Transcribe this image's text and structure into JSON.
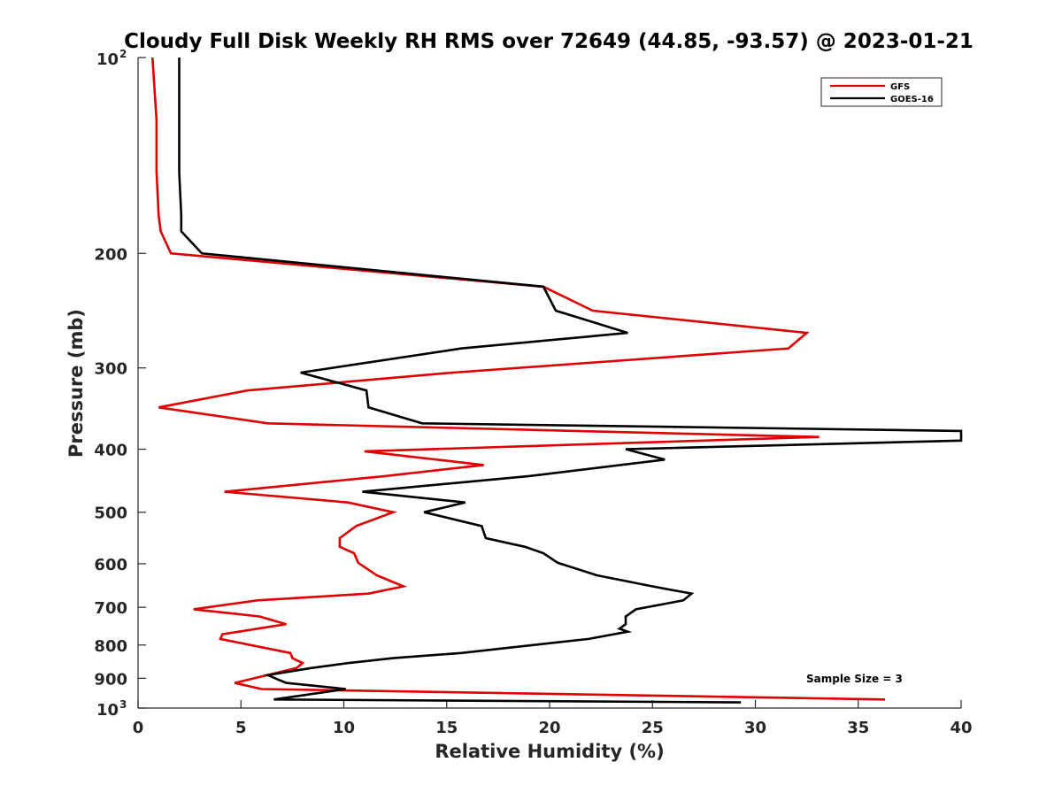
{
  "chart_data": {
    "type": "line",
    "title": "Cloudy Full Disk Weekly RH RMS over 72649 (44.85, -93.57) @ 2023-01-21",
    "xlabel": "Relative Humidity (%)",
    "ylabel": "Pressure (mb)",
    "xlim": [
      0,
      40
    ],
    "ylim": [
      100,
      1000
    ],
    "y_scale": "log",
    "y_reversed": true,
    "grid": false,
    "legend_position": "top-right",
    "x_ticks": [
      {
        "value": 0,
        "label": "0"
      },
      {
        "value": 5,
        "label": "5"
      },
      {
        "value": 10,
        "label": "10"
      },
      {
        "value": 15,
        "label": "15"
      },
      {
        "value": 20,
        "label": "20"
      },
      {
        "value": 25,
        "label": "25"
      },
      {
        "value": 30,
        "label": "30"
      },
      {
        "value": 35,
        "label": "35"
      },
      {
        "value": 40,
        "label": "40"
      }
    ],
    "y_ticks": [
      {
        "value": 100,
        "label": "10",
        "exp": "2"
      },
      {
        "value": 200,
        "label": "200"
      },
      {
        "value": 300,
        "label": "300"
      },
      {
        "value": 400,
        "label": "400"
      },
      {
        "value": 500,
        "label": "500"
      },
      {
        "value": 600,
        "label": "600"
      },
      {
        "value": 700,
        "label": "700"
      },
      {
        "value": 800,
        "label": "800"
      },
      {
        "value": 900,
        "label": "900"
      },
      {
        "value": 1000,
        "label": "10",
        "exp": "3"
      }
    ],
    "series": [
      {
        "name": "GFS",
        "color": "#e00000",
        "points": [
          [
            0.7,
            100
          ],
          [
            0.9,
            125
          ],
          [
            0.9,
            150
          ],
          [
            1.0,
            175
          ],
          [
            1.1,
            185
          ],
          [
            1.6,
            200
          ],
          [
            19.7,
            225
          ],
          [
            22.1,
            245
          ],
          [
            32.5,
            265
          ],
          [
            31.6,
            280
          ],
          [
            15.3,
            305
          ],
          [
            5.3,
            325
          ],
          [
            1.0,
            345
          ],
          [
            6.3,
            365
          ],
          [
            33.1,
            383
          ],
          [
            11.0,
            403
          ],
          [
            16.8,
            423
          ],
          [
            12.0,
            440
          ],
          [
            4.2,
            465
          ],
          [
            10.2,
            483
          ],
          [
            12.4,
            500
          ],
          [
            10.6,
            525
          ],
          [
            9.8,
            548
          ],
          [
            9.8,
            565
          ],
          [
            10.5,
            578
          ],
          [
            10.7,
            598
          ],
          [
            11.6,
            625
          ],
          [
            12.9,
            650
          ],
          [
            11.2,
            667
          ],
          [
            5.8,
            683
          ],
          [
            2.7,
            705
          ],
          [
            5.9,
            723
          ],
          [
            7.2,
            743
          ],
          [
            4.1,
            770
          ],
          [
            4.0,
            783
          ],
          [
            7.4,
            823
          ],
          [
            7.5,
            838
          ],
          [
            8.0,
            853
          ],
          [
            7.7,
            868
          ],
          [
            4.7,
            915
          ],
          [
            6.0,
            935
          ],
          [
            36.3,
            970
          ]
        ]
      },
      {
        "name": "GOES-16",
        "color": "#000000",
        "points": [
          [
            2.0,
            100
          ],
          [
            2.0,
            125
          ],
          [
            2.0,
            150
          ],
          [
            2.1,
            175
          ],
          [
            2.1,
            185
          ],
          [
            3.1,
            200
          ],
          [
            19.7,
            225
          ],
          [
            20.3,
            245
          ],
          [
            23.8,
            265
          ],
          [
            15.7,
            280
          ],
          [
            7.9,
            305
          ],
          [
            11.1,
            325
          ],
          [
            11.2,
            345
          ],
          [
            13.8,
            365
          ],
          [
            40.0,
            375
          ],
          [
            40.0,
            388
          ],
          [
            23.7,
            400
          ],
          [
            25.6,
            415
          ],
          [
            19.0,
            440
          ],
          [
            10.9,
            465
          ],
          [
            15.9,
            483
          ],
          [
            13.9,
            500
          ],
          [
            16.7,
            525
          ],
          [
            16.9,
            548
          ],
          [
            18.8,
            565
          ],
          [
            19.7,
            578
          ],
          [
            20.4,
            598
          ],
          [
            22.3,
            625
          ],
          [
            25.0,
            650
          ],
          [
            26.9,
            667
          ],
          [
            26.5,
            683
          ],
          [
            24.2,
            705
          ],
          [
            23.7,
            723
          ],
          [
            23.7,
            743
          ],
          [
            23.4,
            755
          ],
          [
            23.8,
            763
          ],
          [
            21.9,
            783
          ],
          [
            15.7,
            823
          ],
          [
            12.4,
            838
          ],
          [
            10.2,
            853
          ],
          [
            8.4,
            868
          ],
          [
            6.3,
            890
          ],
          [
            7.2,
            915
          ],
          [
            10.1,
            935
          ],
          [
            6.6,
            970
          ],
          [
            29.3,
            980
          ]
        ]
      }
    ],
    "annotations": [
      {
        "text": "Sample Size = 3"
      }
    ]
  }
}
